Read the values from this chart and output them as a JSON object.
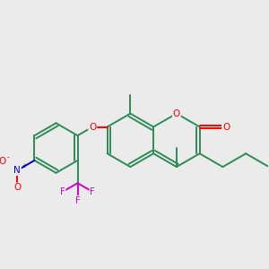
{
  "bg_color": "#EBEBEB",
  "bond_color": "#2D8B57",
  "bond_width": 1.4,
  "atom_colors": {
    "O": "#FF0000",
    "N": "#0000CC",
    "F": "#CC00CC",
    "C": "#2D8B57"
  },
  "figsize": [
    3.0,
    3.0
  ],
  "dpi": 100,
  "font_size": 7.0
}
